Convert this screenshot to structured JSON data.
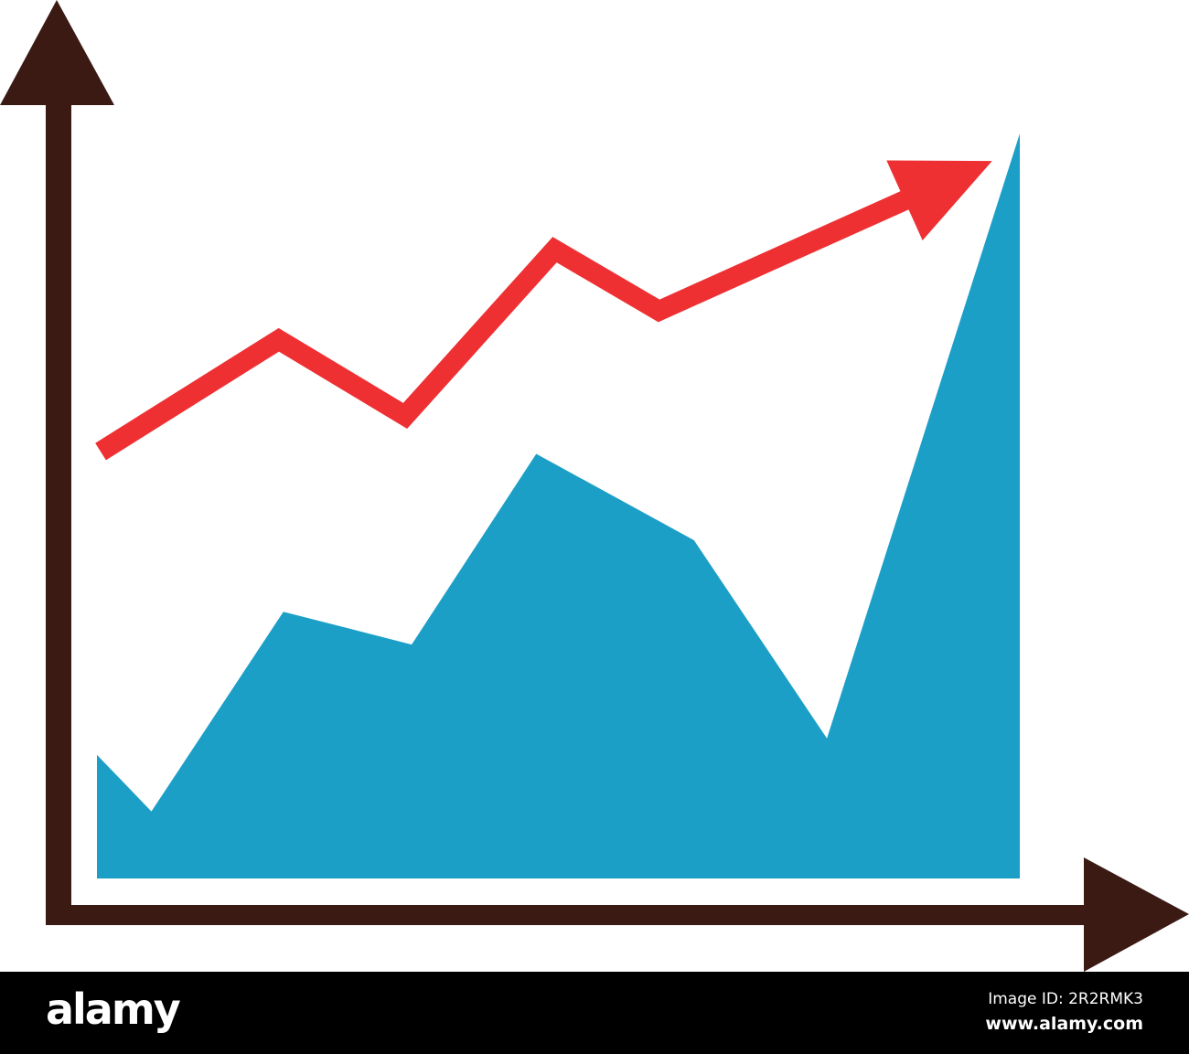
{
  "chart_data": {
    "type": "area",
    "title": "",
    "xlabel": "",
    "ylabel": "",
    "xlim": [
      0,
      100
    ],
    "ylim": [
      0,
      100
    ],
    "grid": false,
    "axis_tick_labels": false,
    "series": [
      {
        "kind": "area",
        "color": "#1c9fc7",
        "x": [
          0,
          5.9,
          20.2,
          34.1,
          47.6,
          64.7,
          79.1,
          100
        ],
        "y": [
          16.6,
          9,
          35.8,
          31.4,
          57,
          45.4,
          18.8,
          100
        ]
      },
      {
        "kind": "trend-arrow-line",
        "color": "#ee3033",
        "x": [
          0.4,
          19.7,
          33.4,
          49.6,
          60.9,
          97
        ],
        "y": [
          57.3,
          72.3,
          62.1,
          84.4,
          76.2,
          96.3
        ]
      }
    ],
    "axis_color": "#3b1a14"
  },
  "footer": {
    "logo": "alamy",
    "image_id": "Image ID: 2R2RMK3",
    "site": "www.alamy.com"
  }
}
